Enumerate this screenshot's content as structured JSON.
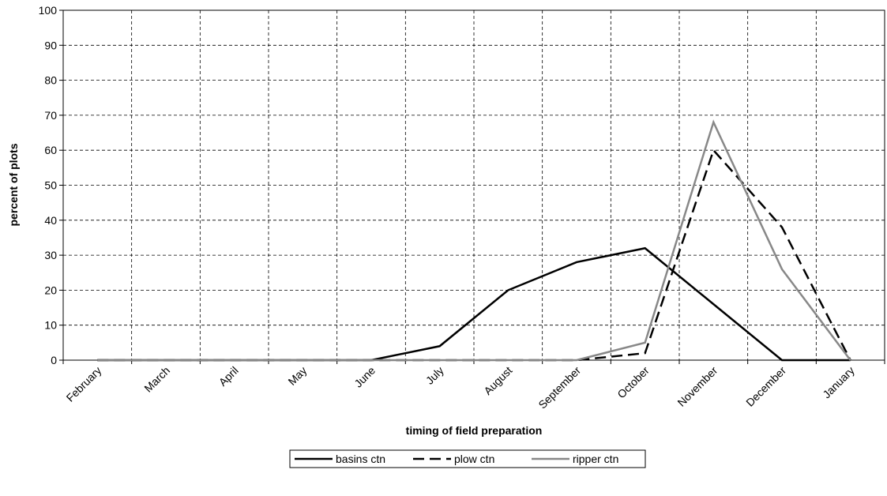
{
  "chart_data": {
    "type": "line",
    "x_label": "timing of field preparation",
    "y_label": "percent of plots",
    "categories": [
      "February",
      "March",
      "April",
      "May",
      "June",
      "July",
      "August",
      "September",
      "October",
      "November",
      "December",
      "January"
    ],
    "series": [
      {
        "name": "basins ctn",
        "color": "#000000",
        "dash": "solid",
        "values": [
          0,
          0,
          0,
          0,
          0,
          4,
          20,
          28,
          32,
          16,
          0,
          0
        ]
      },
      {
        "name": "plow ctn",
        "color": "#000000",
        "dash": "dashed",
        "values": [
          0,
          0,
          0,
          0,
          0,
          0,
          0,
          0,
          2,
          60,
          38,
          0
        ]
      },
      {
        "name": "ripper ctn",
        "color": "#888888",
        "dash": "solid",
        "values": [
          0,
          0,
          0,
          0,
          0,
          0,
          0,
          0,
          5,
          68,
          26,
          0
        ]
      }
    ],
    "ylim": [
      0,
      100
    ],
    "yticks": [
      0,
      10,
      20,
      30,
      40,
      50,
      60,
      70,
      80,
      90,
      100
    ],
    "grid": true,
    "legend": "bottom"
  }
}
